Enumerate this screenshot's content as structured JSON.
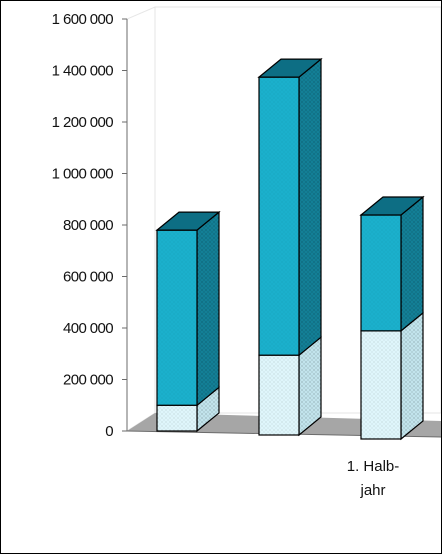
{
  "chart_data": {
    "type": "bar",
    "stacked": true,
    "three_d": true,
    "categories": [
      "",
      "",
      "1. Halb-jahr"
    ],
    "category_label_lines": [
      "1. Halb-",
      "jahr"
    ],
    "series": [
      {
        "values": [
          100000,
          310000,
          420000
        ]
      },
      {
        "values": [
          680000,
          1080000,
          450000
        ]
      }
    ],
    "yticks": [
      "0",
      "200 000",
      "400 000",
      "600 000",
      "800 000",
      "1 000 000",
      "1 200 000",
      "1 400 000",
      "1 600 000"
    ],
    "ylim": [
      0,
      1600000
    ],
    "grid": false,
    "legend": "none",
    "colors": {
      "lower_front": "#dff6fb",
      "lower_side": "#c2e4ec",
      "upper_front": "#1bb0cc",
      "upper_side": "#137f96",
      "top": "#0d6e84",
      "floor": "#a6a6a6",
      "wall": "#e6e6e6"
    }
  }
}
